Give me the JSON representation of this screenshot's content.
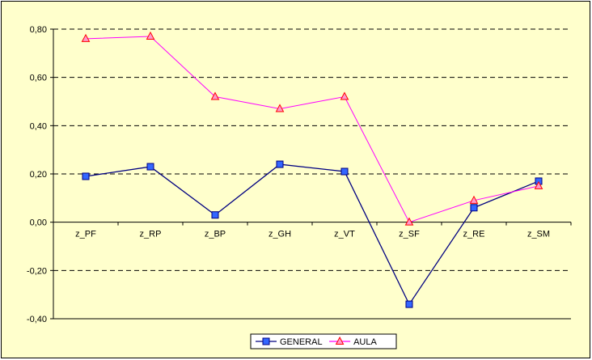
{
  "chart_data": {
    "type": "line",
    "categories": [
      "z_PF",
      "z_RP",
      "z_BP",
      "z_GH",
      "z_VT",
      "z_SF",
      "z_RE",
      "z_SM"
    ],
    "series": [
      {
        "name": "GENERAL",
        "color": "#000080",
        "marker": "square",
        "marker_fill": "#3366ff",
        "values": [
          0.19,
          0.23,
          0.03,
          0.24,
          0.21,
          -0.34,
          0.06,
          0.17
        ]
      },
      {
        "name": "AULA",
        "color": "#ff00ff",
        "marker": "triangle",
        "marker_fill": "#ff99cc",
        "marker_stroke": "#ff0000",
        "values": [
          0.76,
          0.77,
          0.52,
          0.47,
          0.52,
          0.0,
          0.09,
          0.15
        ]
      }
    ],
    "y_ticks": [
      "0,80",
      "0,60",
      "0,40",
      "0,20",
      "0,00",
      "-0,20",
      "-0,40"
    ],
    "ylim": [
      -0.4,
      0.8
    ],
    "grid": "dashed horizontal",
    "legend_position": "bottom",
    "plot_background": "#ffffcc",
    "title": "",
    "xlabel": "",
    "ylabel": ""
  }
}
